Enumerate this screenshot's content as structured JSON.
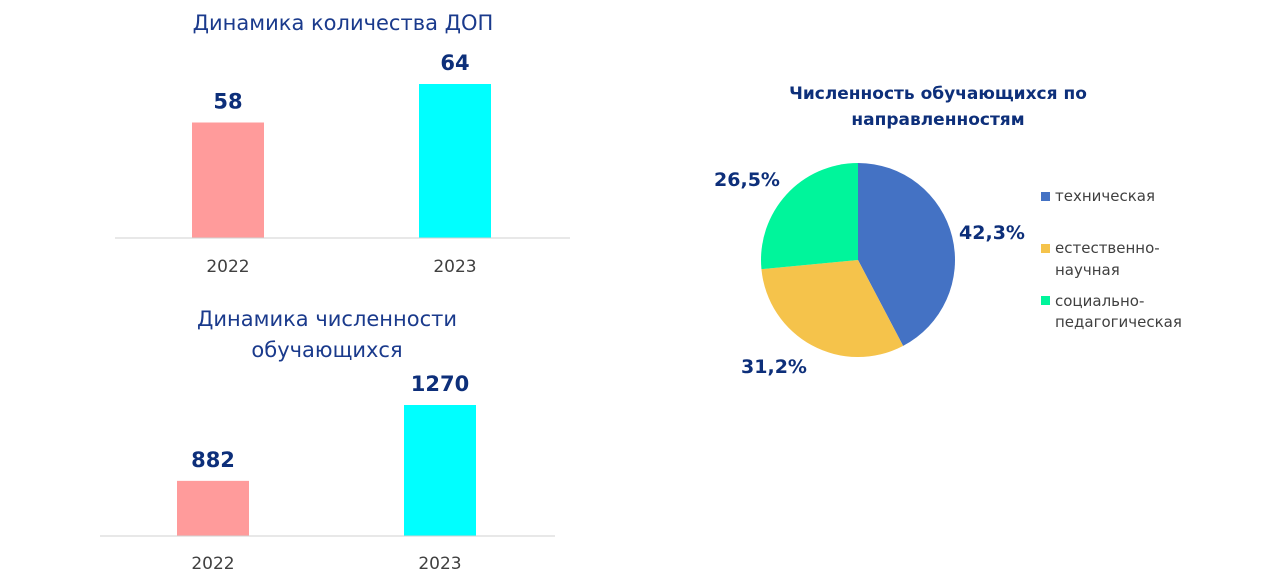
{
  "chart_data": [
    {
      "type": "bar",
      "title": "Динамика количества ДОП",
      "categories": [
        "2022",
        "2023"
      ],
      "values": [
        58,
        64
      ],
      "colors": [
        "#ff9b9b",
        "#00ffff"
      ],
      "data_labels": [
        "58",
        "64"
      ]
    },
    {
      "type": "bar",
      "title_lines": [
        "Динамика численности",
        "обучающихся"
      ],
      "categories": [
        "2022",
        "2023"
      ],
      "values": [
        882,
        1270
      ],
      "colors": [
        "#ff9b9b",
        "#00ffff"
      ],
      "data_labels": [
        "882",
        "1270"
      ]
    },
    {
      "type": "pie",
      "title_lines": [
        "Численность обучающихся по",
        "направленностям"
      ],
      "legend_position": "right",
      "slices": [
        {
          "label_lines": [
            "техническая"
          ],
          "value": 42.3,
          "value_label": "42,3%",
          "color": "#4472c4"
        },
        {
          "label_lines": [
            "естественно-",
            "научная"
          ],
          "value": 31.2,
          "value_label": "31,2%",
          "color": "#f5c34b"
        },
        {
          "label_lines": [
            "социально-",
            "педагогическая"
          ],
          "value": 26.5,
          "value_label": "26,5%",
          "color": "#00f59b"
        }
      ]
    }
  ]
}
